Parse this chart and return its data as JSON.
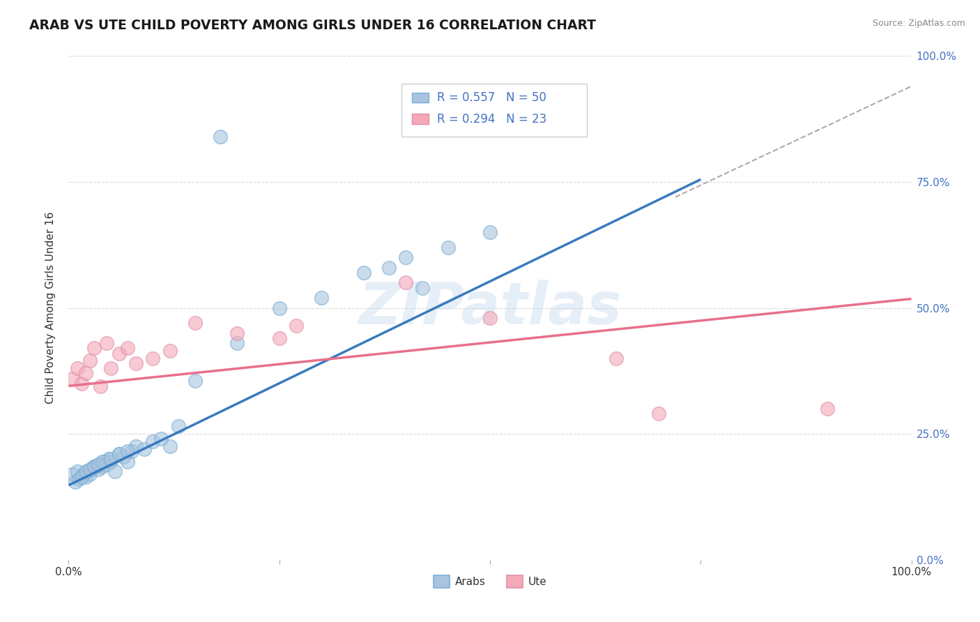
{
  "title": "ARAB VS UTE CHILD POVERTY AMONG GIRLS UNDER 16 CORRELATION CHART",
  "source": "Source: ZipAtlas.com",
  "ylabel": "Child Poverty Among Girls Under 16",
  "xlim": [
    0,
    1
  ],
  "ylim": [
    0,
    1
  ],
  "arab_R": 0.557,
  "arab_N": 50,
  "ute_R": 0.294,
  "ute_N": 23,
  "arab_color": "#a8c4e0",
  "ute_color": "#f4a8b8",
  "arab_line_color": "#3a7abf",
  "ute_line_color": "#e8708a",
  "background_color": "#ffffff",
  "grid_color": "#d8d8d8",
  "watermark": "ZIPatlas",
  "arab_scatter_x": [
    0.005,
    0.008,
    0.01,
    0.012,
    0.015,
    0.018,
    0.02,
    0.022,
    0.025,
    0.028,
    0.03,
    0.032,
    0.035,
    0.038,
    0.04,
    0.042,
    0.045,
    0.048,
    0.05,
    0.055,
    0.06,
    0.065,
    0.07,
    0.075,
    0.08,
    0.09,
    0.1,
    0.11,
    0.12,
    0.13,
    0.015,
    0.02,
    0.025,
    0.03,
    0.035,
    0.04,
    0.05,
    0.06,
    0.07,
    0.15,
    0.2,
    0.25,
    0.3,
    0.35,
    0.4,
    0.45,
    0.5,
    0.18,
    0.38,
    0.42
  ],
  "arab_scatter_y": [
    0.17,
    0.155,
    0.175,
    0.16,
    0.165,
    0.17,
    0.165,
    0.175,
    0.17,
    0.18,
    0.185,
    0.185,
    0.18,
    0.19,
    0.185,
    0.195,
    0.19,
    0.2,
    0.195,
    0.175,
    0.21,
    0.205,
    0.195,
    0.215,
    0.225,
    0.22,
    0.235,
    0.24,
    0.225,
    0.265,
    0.165,
    0.175,
    0.18,
    0.185,
    0.19,
    0.195,
    0.2,
    0.21,
    0.215,
    0.355,
    0.43,
    0.5,
    0.52,
    0.57,
    0.6,
    0.62,
    0.65,
    0.84,
    0.58,
    0.54
  ],
  "ute_scatter_x": [
    0.005,
    0.01,
    0.015,
    0.02,
    0.025,
    0.03,
    0.038,
    0.045,
    0.05,
    0.06,
    0.07,
    0.08,
    0.1,
    0.12,
    0.15,
    0.2,
    0.25,
    0.27,
    0.4,
    0.5,
    0.65,
    0.7,
    0.9
  ],
  "ute_scatter_y": [
    0.36,
    0.38,
    0.35,
    0.37,
    0.395,
    0.42,
    0.345,
    0.43,
    0.38,
    0.41,
    0.42,
    0.39,
    0.4,
    0.415,
    0.47,
    0.45,
    0.44,
    0.465,
    0.55,
    0.48,
    0.4,
    0.29,
    0.3
  ],
  "arab_line_x": [
    0.0,
    0.75
  ],
  "arab_line_y": [
    0.148,
    0.755
  ],
  "ute_line_x": [
    0.0,
    1.0
  ],
  "ute_line_y": [
    0.345,
    0.518
  ],
  "dash_line_x": [
    0.72,
    1.0
  ],
  "dash_line_y": [
    0.72,
    0.94
  ]
}
